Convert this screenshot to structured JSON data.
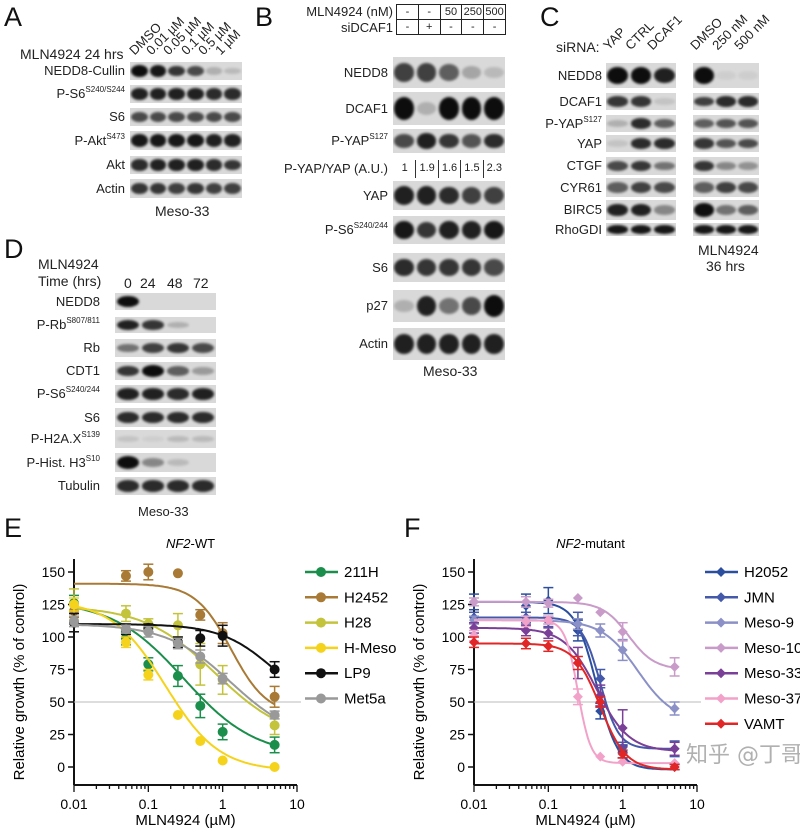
{
  "panel_letters": {
    "A": "A",
    "B": "B",
    "C": "C",
    "D": "D",
    "E": "E",
    "F": "F"
  },
  "panelA": {
    "header": "MLN4924 24 hrs",
    "lanes": [
      "DMSO",
      "0.01 µM",
      "0.05 µM",
      "0.1 µM",
      "0.5 µM",
      "1 µM"
    ],
    "cell_line": "Meso-33",
    "rows": [
      {
        "label": "NEDD8-Cullin",
        "sup": "",
        "bands": [
          1,
          0.95,
          0.8,
          0.7,
          0.2,
          0.15
        ]
      },
      {
        "label": "P-S6",
        "sup": "S240/S244",
        "bands": [
          0.9,
          0.9,
          0.9,
          0.9,
          0.85,
          0.85
        ]
      },
      {
        "label": "S6",
        "sup": "",
        "bands": [
          0.7,
          0.7,
          0.7,
          0.7,
          0.7,
          0.7
        ]
      },
      {
        "label": "P-Akt",
        "sup": "S473",
        "bands": [
          0.95,
          0.95,
          0.95,
          0.95,
          0.9,
          0.9
        ]
      },
      {
        "label": "Akt",
        "sup": "",
        "bands": [
          0.85,
          0.9,
          0.9,
          0.9,
          0.85,
          0.8
        ]
      },
      {
        "label": "Actin",
        "sup": "",
        "bands": [
          0.8,
          0.8,
          0.75,
          0.8,
          0.75,
          0.75
        ]
      }
    ]
  },
  "panelB": {
    "table": [
      {
        "label": "MLN4924 (nM)",
        "cells": [
          "-",
          "-",
          "50",
          "250",
          "500"
        ]
      },
      {
        "label": "siDCAF1",
        "cells": [
          "-",
          "+",
          "-",
          "-",
          "-"
        ]
      }
    ],
    "ratio": {
      "label": "P-YAP/YAP (A.U.)",
      "values": [
        "1",
        "1.9",
        "1.6",
        "1.5",
        "2.3"
      ]
    },
    "cell_line": "Meso-33",
    "rows": [
      {
        "label": "NEDD8",
        "sup": "",
        "bands": [
          0.75,
          0.75,
          0.6,
          0.25,
          0.15
        ]
      },
      {
        "label": "DCAF1",
        "sup": "",
        "bands": [
          1,
          0.2,
          1,
          1,
          1
        ]
      },
      {
        "label": "P-YAP",
        "sup": "S127",
        "bands": [
          0.7,
          0.9,
          0.8,
          0.65,
          0.85
        ]
      },
      {
        "label": "YAP",
        "sup": "",
        "bands": [
          0.9,
          0.9,
          0.85,
          0.75,
          0.75
        ]
      },
      {
        "label": "P-S6",
        "sup": "S240/244",
        "bands": [
          0.95,
          0.8,
          0.9,
          0.9,
          0.95
        ]
      },
      {
        "label": "S6",
        "sup": "",
        "bands": [
          0.85,
          0.8,
          0.8,
          0.8,
          0.7
        ]
      },
      {
        "label": "p27",
        "sup": "",
        "bands": [
          0.2,
          0.9,
          0.5,
          0.7,
          1
        ]
      },
      {
        "label": "Actin",
        "sup": "",
        "bands": [
          0.9,
          0.9,
          0.9,
          0.9,
          0.9
        ]
      }
    ]
  },
  "panelC": {
    "sirna_label": "siRNA:",
    "lanes_sirna": [
      "YAP",
      "CTRL",
      "DCAF1"
    ],
    "lanes_mln": [
      "DMSO",
      "250 nM",
      "500 nM"
    ],
    "mln_caption": [
      "MLN4924",
      "36 hrs"
    ],
    "rows": [
      {
        "label": "NEDD8",
        "sup": "",
        "bands": [
          1,
          1,
          0.9,
          1,
          0.05,
          0.05
        ]
      },
      {
        "label": "DCAF1",
        "sup": "",
        "bands": [
          0.8,
          0.8,
          0.1,
          0.75,
          0.85,
          0.85
        ]
      },
      {
        "label": "P-YAP",
        "sup": "S127",
        "bands": [
          0.2,
          0.85,
          0.6,
          0.6,
          0.65,
          0.65
        ]
      },
      {
        "label": "YAP",
        "sup": "",
        "bands": [
          0.1,
          0.85,
          0.85,
          0.8,
          0.65,
          0.7
        ]
      },
      {
        "label": "CTGF",
        "sup": "",
        "bands": [
          0.7,
          0.8,
          0.5,
          0.8,
          0.4,
          0.35
        ]
      },
      {
        "label": "CYR61",
        "sup": "",
        "bands": [
          0.6,
          0.75,
          0.7,
          0.6,
          0.75,
          0.7
        ]
      },
      {
        "label": "BIRC5",
        "sup": "",
        "bands": [
          0.9,
          0.9,
          0.4,
          1,
          0.5,
          0.6
        ]
      },
      {
        "label": "RhoGDI",
        "sup": "",
        "bands": [
          0.95,
          0.95,
          0.95,
          0.95,
          0.95,
          0.95
        ]
      }
    ]
  },
  "panelD": {
    "header": [
      "MLN4924",
      "Time (hrs)"
    ],
    "lanes": [
      "0",
      "24",
      "48",
      "72"
    ],
    "cell_line": "Meso-33",
    "rows": [
      {
        "label": "NEDD8",
        "sup": "",
        "bands": [
          1,
          0,
          0,
          0
        ]
      },
      {
        "label": "P-Rb",
        "sup": "S807/811",
        "bands": [
          0.9,
          0.8,
          0.2,
          0
        ]
      },
      {
        "label": "Rb",
        "sup": "",
        "bands": [
          0.5,
          0.75,
          0.8,
          0.7
        ]
      },
      {
        "label": "CDT1",
        "sup": "",
        "bands": [
          0.8,
          1,
          0.6,
          0.3
        ]
      },
      {
        "label": "P-S6",
        "sup": "S240/244",
        "bands": [
          0.9,
          0.9,
          0.85,
          0.9
        ]
      },
      {
        "label": "S6",
        "sup": "",
        "bands": [
          0.85,
          0.85,
          0.85,
          0.85
        ]
      },
      {
        "label": "P-H2A.X",
        "sup": "S139",
        "bands": [
          0.1,
          0.05,
          0.15,
          0.15
        ]
      },
      {
        "label": "P-Hist. H3",
        "sup": "S10",
        "bands": [
          1,
          0.4,
          0.15,
          0
        ]
      },
      {
        "label": "Tubulin",
        "sup": "",
        "bands": [
          0.85,
          0.85,
          0.85,
          0.85
        ]
      }
    ]
  },
  "chart_data": [
    {
      "type": "scatter",
      "title_italic": "NF2",
      "title_rest": "-WT",
      "xlabel": "MLN4924 (µM)",
      "ylabel": "Relative growth (% of control)",
      "xscale": "log",
      "xlim": [
        0.01,
        10
      ],
      "ylim": [
        0,
        160
      ],
      "xticks": [
        "0.01",
        "0.1",
        "1",
        "10"
      ],
      "yticks": [
        "0",
        "25",
        "50",
        "75",
        "100",
        "125",
        "150"
      ],
      "reference_line": 50,
      "legend": "right",
      "marker": "circle",
      "x": [
        0.01,
        0.05,
        0.1,
        0.25,
        0.5,
        1,
        5
      ],
      "series": [
        {
          "name": "211H",
          "color": "#1b8e4b",
          "values": [
            126,
            99,
            79,
            70,
            47,
            27,
            17
          ],
          "err": [
            6,
            5,
            5,
            8,
            9,
            6,
            6
          ],
          "fit": {
            "top": 128,
            "bottom": 8,
            "ec50": 0.3,
            "hill": 0.9
          }
        },
        {
          "name": "H2452",
          "color": "#a87a35",
          "values": [
            120,
            147,
            150,
            149,
            117,
            103,
            54
          ],
          "err": [
            5,
            4,
            6,
            0,
            4,
            8,
            8
          ],
          "fit": {
            "top": 141,
            "bottom": 40,
            "ec50": 1.3,
            "hill": 1.8
          }
        },
        {
          "name": "H28",
          "color": "#c3c43c",
          "values": [
            125,
            118,
            110,
            109,
            79,
            67,
            32
          ],
          "err": [
            12,
            6,
            4,
            9,
            16,
            11,
            7
          ],
          "fit": {
            "top": 124,
            "bottom": 20,
            "ec50": 0.8,
            "hill": 0.9
          }
        },
        {
          "name": "H-Meso",
          "color": "#f5d31c",
          "values": [
            125,
            96,
            71,
            40,
            20,
            5,
            0
          ],
          "err": [
            5,
            4,
            4,
            0,
            0,
            0,
            0
          ],
          "fit": {
            "top": 128,
            "bottom": -3,
            "ec50": 0.17,
            "hill": 1.2
          }
        },
        {
          "name": "LP9",
          "color": "#111111",
          "values": [
            111,
            106,
            107,
            96,
            99,
            101,
            75
          ],
          "err": [
            7,
            4,
            3,
            4,
            6,
            8,
            6
          ],
          "fit": {
            "top": 110,
            "bottom": 40,
            "ec50": 5,
            "hill": 1.2
          }
        },
        {
          "name": "Met5a",
          "color": "#999999",
          "values": [
            112,
            106,
            104,
            95,
            85,
            68,
            40
          ],
          "err": [
            4,
            3,
            4,
            4,
            5,
            4,
            3
          ],
          "fit": {
            "top": 110,
            "bottom": 20,
            "ec50": 1.3,
            "hill": 1.0
          }
        }
      ]
    },
    {
      "type": "scatter",
      "title_italic": "NF2",
      "title_rest": "-mutant",
      "xlabel": "MLN4924 (µM)",
      "ylabel": "Relative growth (% of control)",
      "xscale": "log",
      "xlim": [
        0.01,
        10
      ],
      "ylim": [
        0,
        160
      ],
      "xticks": [
        "0.01",
        "0.1",
        "1",
        "10"
      ],
      "yticks": [
        "0",
        "25",
        "50",
        "75",
        "100",
        "125",
        "150"
      ],
      "reference_line": 50,
      "legend": "right",
      "marker": "diamond",
      "x": [
        0.01,
        0.05,
        0.1,
        0.25,
        0.5,
        1,
        5
      ],
      "series": [
        {
          "name": "H2052",
          "color": "#2b4e9f",
          "values": [
            127,
            124,
            128,
            105,
            43,
            12,
            0
          ],
          "err": [
            6,
            9,
            10,
            8,
            6,
            5,
            2
          ],
          "fit": {
            "top": 127,
            "bottom": -2,
            "ec50": 0.45,
            "hill": 3
          }
        },
        {
          "name": "JMN",
          "color": "#4459aa",
          "values": [
            115,
            115,
            112,
            110,
            68,
            15,
            14
          ],
          "err": [
            4,
            4,
            4,
            9,
            7,
            4,
            6
          ],
          "fit": {
            "top": 115,
            "bottom": 14,
            "ec50": 0.5,
            "hill": 3.5
          }
        },
        {
          "name": "Meso-9",
          "color": "#8b90c6",
          "values": [
            113,
            113,
            113,
            110,
            105,
            90,
            45
          ],
          "err": [
            3,
            3,
            3,
            4,
            5,
            8,
            5
          ],
          "fit": {
            "top": 113,
            "bottom": 35,
            "ec50": 1.6,
            "hill": 1.8
          }
        },
        {
          "name": "Meso-10",
          "color": "#c99bc9",
          "values": [
            127,
            127,
            126,
            130,
            119,
            104,
            77
          ],
          "err": [
            3,
            4,
            3,
            0,
            0,
            7,
            7
          ],
          "fit": {
            "top": 127,
            "bottom": 75,
            "ec50": 1.2,
            "hill": 2.5
          }
        },
        {
          "name": "Meso-33",
          "color": "#7a3f97",
          "values": [
            107,
            105,
            103,
            80,
            55,
            30,
            14
          ],
          "err": [
            4,
            4,
            4,
            12,
            8,
            14,
            5
          ],
          "fit": {
            "top": 107,
            "bottom": 12,
            "ec50": 0.45,
            "hill": 2
          }
        },
        {
          "name": "Meso-37",
          "color": "#f2a2c9",
          "values": [
            101,
            112,
            113,
            54,
            8,
            4,
            3
          ],
          "err": [
            4,
            4,
            3,
            6,
            0,
            0,
            0
          ],
          "fit": {
            "top": 113,
            "bottom": 3,
            "ec50": 0.25,
            "hill": 5
          }
        },
        {
          "name": "VAMT",
          "color": "#e02626",
          "values": [
            96,
            95,
            93,
            80,
            50,
            10,
            0
          ],
          "err": [
            4,
            4,
            4,
            5,
            4,
            3,
            2
          ],
          "fit": {
            "top": 95,
            "bottom": -2,
            "ec50": 0.5,
            "hill": 2.5
          }
        }
      ]
    }
  ],
  "watermark": "知乎 @丁哥"
}
